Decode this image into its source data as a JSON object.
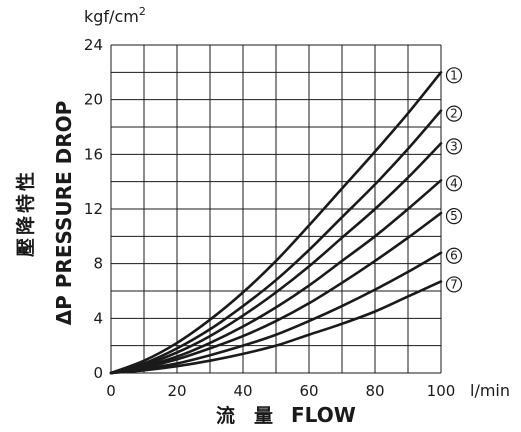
{
  "chart_data": {
    "type": "line",
    "y_unit": "kgf/cm",
    "y_unit_sup": "2",
    "x_unit": "l/min",
    "ylabel_en": "ΔP PRESSURE DROP",
    "ylabel_cjk": "壓降特性",
    "xlabel_cjk": "流　量",
    "xlabel_en": "FLOW",
    "xlim": [
      0,
      100
    ],
    "ylim": [
      0,
      24
    ],
    "x_ticks": [
      "0",
      "20",
      "40",
      "60",
      "80",
      "100"
    ],
    "y_ticks": [
      "0",
      "4",
      "8",
      "12",
      "16",
      "20",
      "24"
    ],
    "grid": true,
    "x": [
      0,
      10,
      20,
      30,
      40,
      50,
      60,
      70,
      80,
      90,
      100
    ],
    "series": [
      {
        "name": "①",
        "values": [
          0,
          0.9,
          2.2,
          3.9,
          5.9,
          8.2,
          10.8,
          13.5,
          16.2,
          19.0,
          22.0
        ]
      },
      {
        "name": "②",
        "values": [
          0,
          0.7,
          1.8,
          3.2,
          4.9,
          6.8,
          9.0,
          11.4,
          13.8,
          16.4,
          19.2
        ]
      },
      {
        "name": "③",
        "values": [
          0,
          0.6,
          1.5,
          2.7,
          4.2,
          5.9,
          7.8,
          9.9,
          12.0,
          14.3,
          16.8
        ]
      },
      {
        "name": "④",
        "values": [
          0,
          0.5,
          1.2,
          2.2,
          3.4,
          4.8,
          6.4,
          8.2,
          10.0,
          12.0,
          14.1
        ]
      },
      {
        "name": "⑤",
        "values": [
          0,
          0.4,
          1.0,
          1.8,
          2.7,
          3.8,
          5.1,
          6.6,
          8.2,
          9.9,
          11.7
        ]
      },
      {
        "name": "⑥",
        "values": [
          0,
          0.3,
          0.7,
          1.3,
          2.0,
          2.8,
          3.8,
          4.9,
          6.1,
          7.4,
          8.8
        ]
      },
      {
        "name": "⑦",
        "values": [
          0,
          0.2,
          0.5,
          0.9,
          1.4,
          2.0,
          2.8,
          3.6,
          4.5,
          5.6,
          6.7
        ]
      }
    ]
  }
}
